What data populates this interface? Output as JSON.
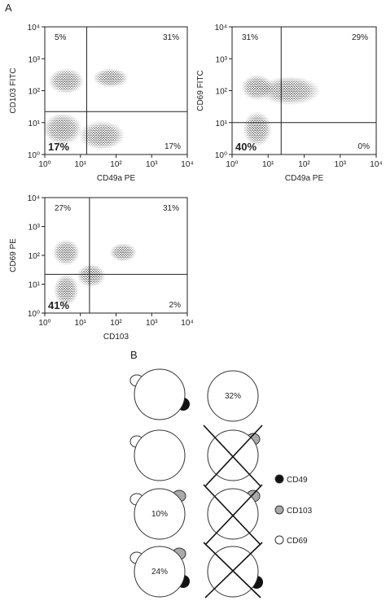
{
  "panel_label": "A",
  "chart_data": [
    {
      "type": "scatter",
      "log_scale": true,
      "xlabel": "CD49a PE",
      "ylabel": "CD103 FITC",
      "xlim": [
        1,
        10000
      ],
      "ylim": [
        1,
        10000
      ],
      "xticks": [
        {
          "value": 1,
          "label": "10⁰"
        },
        {
          "value": 10,
          "label": "10¹"
        },
        {
          "value": 100,
          "label": "10²"
        },
        {
          "value": 1000,
          "label": "10³"
        },
        {
          "value": 10000,
          "label": "10⁴"
        }
      ],
      "yticks": [
        {
          "value": 1,
          "label": "10⁰"
        },
        {
          "value": 10,
          "label": "10¹"
        },
        {
          "value": 100,
          "label": "10²"
        },
        {
          "value": 1000,
          "label": "10³"
        },
        {
          "value": 10000,
          "label": "10⁴"
        }
      ],
      "gates": {
        "x": 15,
        "y": 22
      },
      "quadrant_labels": {
        "upper_left": "5%",
        "upper_right": "31%",
        "lower_left": "17%",
        "lower_right": "17%"
      }
    },
    {
      "type": "scatter",
      "log_scale": true,
      "xlabel": "CD49a PE",
      "ylabel": "CD69 FITC",
      "xlim": [
        1,
        10000
      ],
      "ylim": [
        1,
        10000
      ],
      "xticks": [
        {
          "value": 1,
          "label": "10⁰"
        },
        {
          "value": 10,
          "label": "10¹"
        },
        {
          "value": 100,
          "label": "10²"
        },
        {
          "value": 1000,
          "label": "10³"
        },
        {
          "value": 10000,
          "label": "10⁴"
        }
      ],
      "yticks": [
        {
          "value": 1,
          "label": "10⁰"
        },
        {
          "value": 10,
          "label": "10¹"
        },
        {
          "value": 100,
          "label": "10²"
        },
        {
          "value": 1000,
          "label": "10³"
        },
        {
          "value": 10000,
          "label": "10⁴"
        }
      ],
      "gates": {
        "x": 23,
        "y": 10
      },
      "quadrant_labels": {
        "upper_left": "31%",
        "upper_right": "29%",
        "lower_left": "40%",
        "lower_right": "0%"
      }
    },
    {
      "type": "scatter",
      "log_scale": true,
      "xlabel": "CD103",
      "ylabel": "CD69 PE",
      "xlim": [
        1,
        10000
      ],
      "ylim": [
        1,
        10000
      ],
      "xticks": [
        {
          "value": 1,
          "label": "10⁰"
        },
        {
          "value": 10,
          "label": "10¹"
        },
        {
          "value": 100,
          "label": "10²"
        },
        {
          "value": 1000,
          "label": "10³"
        },
        {
          "value": 10000,
          "label": "10⁴"
        }
      ],
      "yticks": [
        {
          "value": 1,
          "label": "10⁰"
        },
        {
          "value": 10,
          "label": "10¹"
        },
        {
          "value": 100,
          "label": "10²"
        },
        {
          "value": 1000,
          "label": "10³"
        },
        {
          "value": 10000,
          "label": "10⁴"
        }
      ],
      "gates": {
        "x": 18,
        "y": 22
      },
      "quadrant_labels": {
        "upper_left": "27%",
        "upper_right": "31%",
        "lower_left": "41%",
        "lower_right": "2%"
      }
    }
  ],
  "diagram": {
    "label": "B",
    "cells": [
      "32%",
      "10%",
      "24%"
    ],
    "legend": [
      "CD49",
      "CD103",
      "CD69"
    ]
  }
}
